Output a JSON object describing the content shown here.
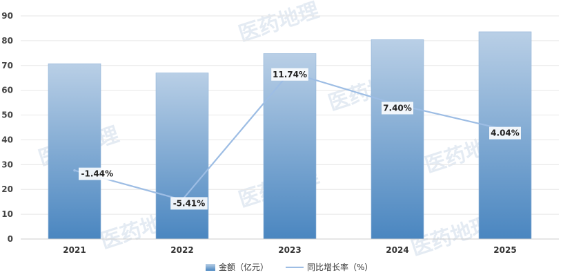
{
  "watermark": "医药地理",
  "colors": {
    "bar_top": "#b9cfe6",
    "bar_bottom": "#4a86c0",
    "line": "#9dbde4",
    "grid": "#e6e6e6",
    "axis": "#cccccc"
  },
  "chart_data": {
    "type": "bar",
    "categories": [
      "2021",
      "2022",
      "2023",
      "2024",
      "2025"
    ],
    "ylim": [
      0,
      90
    ],
    "yticks": [
      0,
      10,
      20,
      30,
      40,
      50,
      60,
      70,
      80,
      90
    ],
    "grid": true,
    "legend_position": "bottom",
    "series": [
      {
        "name": "金额（亿元）",
        "type": "bar",
        "values": [
          70.7,
          67.0,
          74.8,
          80.4,
          83.6
        ]
      },
      {
        "name": "同比增长率（%）",
        "type": "line",
        "values": [
          -1.44,
          -5.41,
          11.74,
          7.4,
          4.04
        ],
        "labels": [
          "-1.44%",
          "-5.41%",
          "11.74%",
          "7.40%",
          "4.04%"
        ]
      }
    ]
  }
}
